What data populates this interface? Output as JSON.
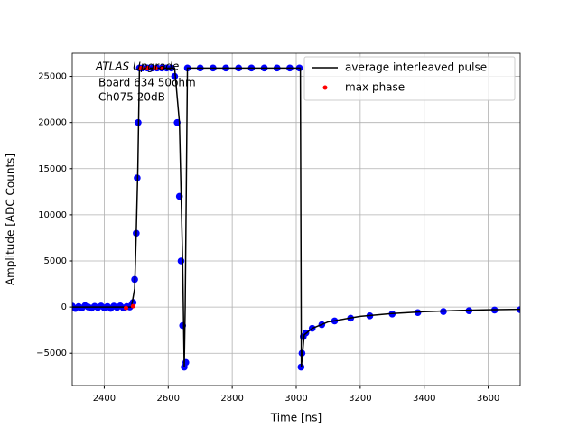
{
  "chart_data": {
    "type": "line",
    "annotation": [
      "ATLAS Upgrade",
      "Board 634 50ohm",
      "Ch075 20dB"
    ],
    "x_label": "Time [ns]",
    "y_label": "Amplitude [ADC Counts]",
    "xlim": [
      2300,
      3700
    ],
    "xticks": [
      2400,
      2600,
      2800,
      3000,
      3200,
      3400,
      3600
    ],
    "ylim": [
      -8500,
      27500
    ],
    "yticks": [
      {
        "value": -5000,
        "label": "−5000"
      },
      0,
      5000,
      10000,
      15000,
      20000,
      25000
    ],
    "grid": true,
    "legend": "upper right",
    "series": [
      {
        "type": "scatter",
        "color": "#0000ff",
        "x": [
          2300,
          2310,
          2320,
          2330,
          2340,
          2350,
          2360,
          2370,
          2380,
          2390,
          2400,
          2410,
          2420,
          2430,
          2440,
          2450,
          2460,
          2470,
          2480,
          2485,
          2490,
          2495,
          2500,
          2503,
          2506,
          2510,
          2520,
          2535,
          2550,
          2565,
          2580,
          2595,
          2610,
          2620,
          2628,
          2635,
          2640,
          2645,
          2650,
          2655,
          2660,
          2700,
          2740,
          2780,
          2820,
          2860,
          2900,
          2940,
          2980,
          3010,
          3015,
          3018,
          3022,
          3030,
          3050,
          3080,
          3120,
          3170,
          3230,
          3300,
          3380,
          3460,
          3540,
          3620,
          3700
        ],
        "values": [
          100,
          -150,
          50,
          -100,
          150,
          0,
          -120,
          80,
          -60,
          120,
          -80,
          60,
          -140,
          100,
          -40,
          130,
          -90,
          50,
          0,
          200,
          500,
          3000,
          8000,
          14000,
          20000,
          25900,
          25900,
          25900,
          25900,
          25900,
          25900,
          25900,
          25900,
          25000,
          20000,
          12000,
          5000,
          -2000,
          -6500,
          -6000,
          25900,
          25900,
          25900,
          25900,
          25900,
          25900,
          25900,
          25900,
          25900,
          25900,
          -6500,
          -5000,
          -3200,
          -2800,
          -2300,
          -1900,
          -1500,
          -1200,
          -950,
          -750,
          -600,
          -480,
          -400,
          -330,
          -290
        ]
      },
      {
        "type": "line",
        "name": "average interleaved pulse",
        "color": "#000000",
        "x": [
          2300,
          2485,
          2495,
          2500,
          2505,
          2510,
          2620,
          2635,
          2645,
          2650,
          2653,
          2660,
          3013,
          3016,
          3025,
          3050,
          3100,
          3200,
          3300,
          3400,
          3500,
          3600,
          3700
        ],
        "values": [
          0,
          0,
          2000,
          8000,
          15000,
          25900,
          25900,
          20000,
          5000,
          -6500,
          0,
          25900,
          25900,
          -6500,
          -3000,
          -2300,
          -1600,
          -1000,
          -700,
          -500,
          -380,
          -300,
          -250
        ]
      },
      {
        "type": "scatter",
        "name": "max phase",
        "color": "#ff0000",
        "x": [
          2468,
          2490,
          2515,
          2535,
          2560,
          2580
        ],
        "values": [
          -100,
          100,
          25900,
          25900,
          25900,
          25900
        ]
      }
    ]
  }
}
